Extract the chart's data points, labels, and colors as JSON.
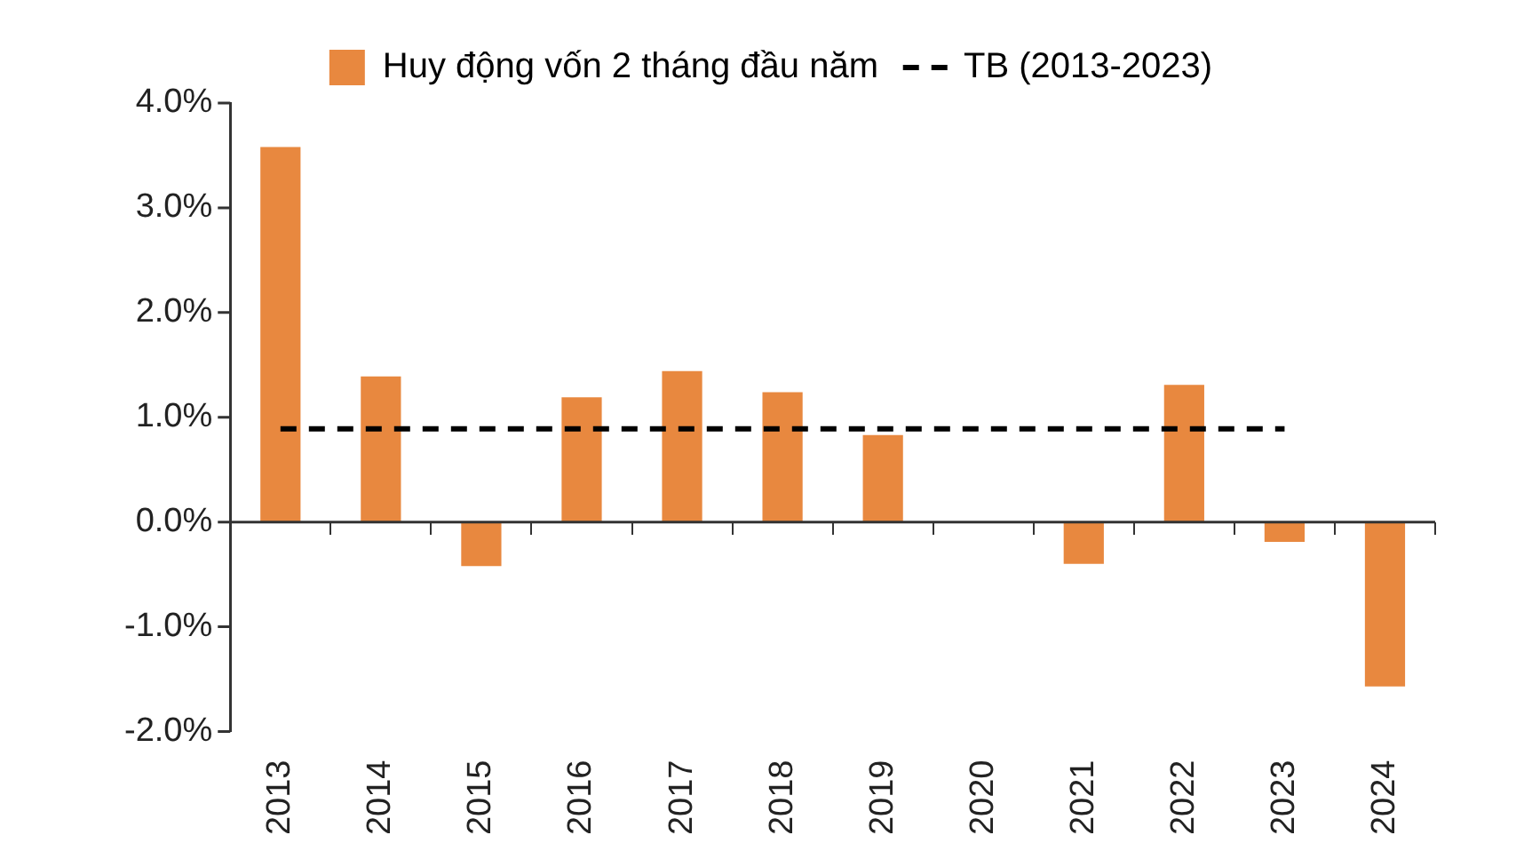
{
  "chart_data": {
    "type": "bar",
    "categories": [
      "2013",
      "2014",
      "2015",
      "2016",
      "2017",
      "2018",
      "2019",
      "2020",
      "2021",
      "2022",
      "2023",
      "2024"
    ],
    "series": [
      {
        "name": "Huy động vốn 2 tháng đầu năm",
        "color": "#e8883f",
        "values": [
          3.58,
          1.39,
          -0.42,
          1.19,
          1.44,
          1.24,
          0.83,
          0,
          -0.4,
          1.31,
          -0.19,
          -1.57
        ]
      },
      {
        "name": "TB (2013-2023)",
        "type": "line",
        "color": "#000000",
        "line_style": "dashed",
        "marker": "none",
        "values": [
          0.89,
          0.89,
          0.89,
          0.89,
          0.89,
          0.89,
          0.89,
          0.89,
          0.89,
          0.89,
          0.89,
          null
        ]
      }
    ],
    "ylim": [
      -2,
      4
    ],
    "yticks": [
      {
        "value": -2,
        "label": "-2.0%"
      },
      {
        "value": -1,
        "label": "-1.0%"
      },
      {
        "value": 0,
        "label": "0.0%"
      },
      {
        "value": 1,
        "label": "1.0%"
      },
      {
        "value": 2,
        "label": "2.0%"
      },
      {
        "value": 3,
        "label": "3.0%"
      },
      {
        "value": 4,
        "label": "4.0%"
      }
    ],
    "ref_lines": [
      {
        "axis": "y",
        "value": 0,
        "color": "#333333",
        "line_style": "solid"
      }
    ],
    "grid": false,
    "legend": "top"
  }
}
